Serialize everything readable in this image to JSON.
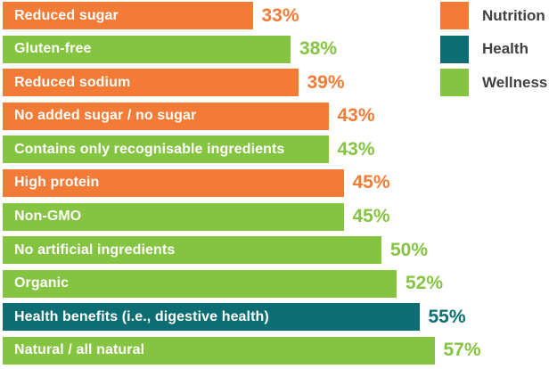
{
  "chart_data": {
    "type": "bar",
    "orientation": "horizontal",
    "title": "",
    "xlabel": "",
    "ylabel": "",
    "xlim": [
      0,
      60
    ],
    "grid": false,
    "value_suffix": "%",
    "categories": [
      "Reduced sugar",
      "Gluten-free",
      "Reduced sodium",
      "No added sugar / no sugar",
      "Contains only recognisable ingredients",
      "High protein",
      "Non-GMO",
      "No artificial ingredients",
      "Organic",
      "Health benefits (i.e., digestive health)",
      "Natural / all natural"
    ],
    "values": [
      33,
      38,
      39,
      43,
      43,
      45,
      45,
      50,
      52,
      55,
      57
    ],
    "value_labels": [
      "33%",
      "38%",
      "39%",
      "43%",
      "43%",
      "45%",
      "45%",
      "50%",
      "52%",
      "55%",
      "57%"
    ],
    "series_by_bar": [
      "Nutrition",
      "Wellness",
      "Nutrition",
      "Nutrition",
      "Wellness",
      "Nutrition",
      "Wellness",
      "Wellness",
      "Wellness",
      "Health",
      "Wellness"
    ],
    "legend_position": "top-right",
    "legend": [
      {
        "label": "Nutrition",
        "color": "#F47B35"
      },
      {
        "label": "Health",
        "color": "#0C6E72"
      },
      {
        "label": "Wellness",
        "color": "#85C441"
      }
    ]
  },
  "colors": {
    "background": "#FFFFFF",
    "bar_text": "#FFFFFF",
    "legend_text": "#414042"
  }
}
